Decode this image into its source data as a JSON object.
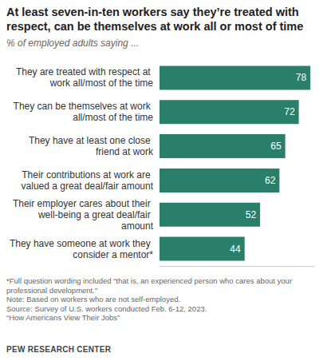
{
  "chart_data": {
    "type": "bar",
    "orientation": "horizontal",
    "title": "At least seven-in-ten workers say they’re treated with respect, can be themselves at work all or most of time",
    "subtitle": "% of employed adults saying ...",
    "categories": [
      "They are treated with respect at work all/most of the time",
      "They can be themselves at work all/most of the time",
      "They have at least one close friend at work",
      "Their contributions at work are valued a great deal/fair amount",
      "Their employer cares about their well-being a great deal/fair amount",
      "They have someone at work they consider a mentor*"
    ],
    "values": [
      78,
      72,
      65,
      62,
      52,
      44
    ],
    "color": "#2a7f6a",
    "xlim": [
      0,
      80
    ],
    "data_labels": true,
    "tick_labels": "y",
    "grid": false,
    "notes": [
      "*Full question wording included “that is, an experienced person who cares about your professional development.”",
      "Note: Based on workers who are not self-employed.",
      "Source: Survey of U.S. workers conducted Feb. 6-12, 2023.",
      "“How Americans View Their Jobs”"
    ],
    "source_org": "PEW RESEARCH CENTER"
  }
}
